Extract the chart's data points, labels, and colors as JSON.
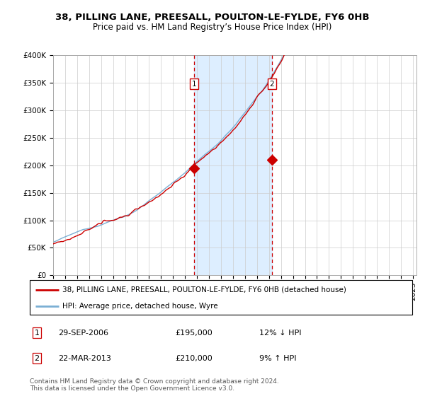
{
  "title": "38, PILLING LANE, PREESALL, POULTON-LE-FYLDE, FY6 0HB",
  "subtitle": "Price paid vs. HM Land Registry’s House Price Index (HPI)",
  "ylim": [
    0,
    400000
  ],
  "yticks": [
    0,
    50000,
    100000,
    150000,
    200000,
    250000,
    300000,
    350000,
    400000
  ],
  "ytick_labels": [
    "£0",
    "£50K",
    "£100K",
    "£150K",
    "£200K",
    "£250K",
    "£300K",
    "£350K",
    "£400K"
  ],
  "xlim_start": 1995,
  "xlim_end": 2025.3,
  "sale1_date_num": 2006.75,
  "sale1_price": 195000,
  "sale1_label": "1",
  "sale2_date_num": 2013.23,
  "sale2_price": 210000,
  "sale2_label": "2",
  "hpi_color": "#7bafd4",
  "sale_color": "#cc0000",
  "shade_color": "#ddeeff",
  "marker_box_color": "#cc0000",
  "marker_box_fill": "#ffffff",
  "legend_line1": "38, PILLING LANE, PREESALL, POULTON-LE-FYLDE, FY6 0HB (detached house)",
  "legend_line2": "HPI: Average price, detached house, Wyre",
  "table_row1": [
    "1",
    "29-SEP-2006",
    "£195,000",
    "12% ↓ HPI"
  ],
  "table_row2": [
    "2",
    "22-MAR-2013",
    "£210,000",
    "9% ↑ HPI"
  ],
  "footnote": "Contains HM Land Registry data © Crown copyright and database right 2024.\nThis data is licensed under the Open Government Licence v3.0.",
  "bg_color": "#ffffff",
  "grid_color": "#cccccc",
  "title_fontsize": 9.5,
  "subtitle_fontsize": 8.5,
  "tick_fontsize": 7.5,
  "legend_fontsize": 7.5,
  "table_fontsize": 8,
  "footnote_fontsize": 6.5
}
